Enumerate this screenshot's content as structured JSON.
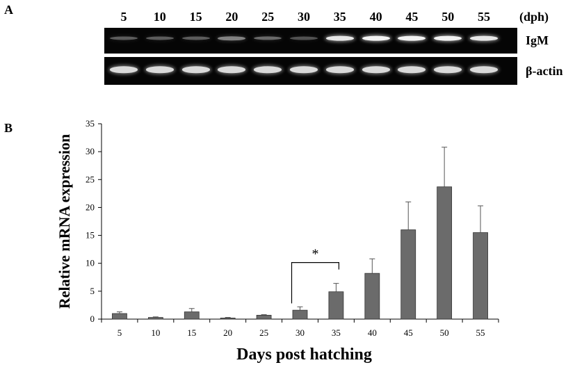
{
  "panels": {
    "a": "A",
    "b": "B"
  },
  "gel": {
    "lanes": [
      "5",
      "10",
      "15",
      "20",
      "25",
      "30",
      "35",
      "40",
      "45",
      "50",
      "55"
    ],
    "unit": "(dph)",
    "rows": [
      {
        "label": "IgM",
        "intensity": [
          0.35,
          0.35,
          0.35,
          0.5,
          0.4,
          0.3,
          0.9,
          0.95,
          0.95,
          0.95,
          0.9
        ]
      },
      {
        "label": "β-actin",
        "intensity": [
          0.85,
          0.85,
          0.85,
          0.85,
          0.85,
          0.85,
          0.85,
          0.85,
          0.85,
          0.85,
          0.85
        ]
      }
    ]
  },
  "chart_data": {
    "type": "bar",
    "categories": [
      "5",
      "10",
      "15",
      "20",
      "25",
      "30",
      "35",
      "40",
      "45",
      "50",
      "55"
    ],
    "values": [
      1.0,
      0.3,
      1.3,
      0.2,
      0.7,
      1.6,
      4.9,
      8.2,
      16.0,
      23.7,
      15.5
    ],
    "errors": [
      0.3,
      0.1,
      0.6,
      0.1,
      0.1,
      0.6,
      1.5,
      2.6,
      5.0,
      7.1,
      4.8
    ],
    "xlabel": "Days post hatching",
    "ylabel": "Relative mRNA expression",
    "ylim": [
      0,
      35
    ],
    "yticks": [
      "0",
      "5",
      "10",
      "15",
      "20",
      "25",
      "30",
      "35"
    ],
    "grid": false,
    "bar_color": "#6b6b6b",
    "annotation": {
      "text": "*",
      "from": "30",
      "to": "35"
    }
  }
}
